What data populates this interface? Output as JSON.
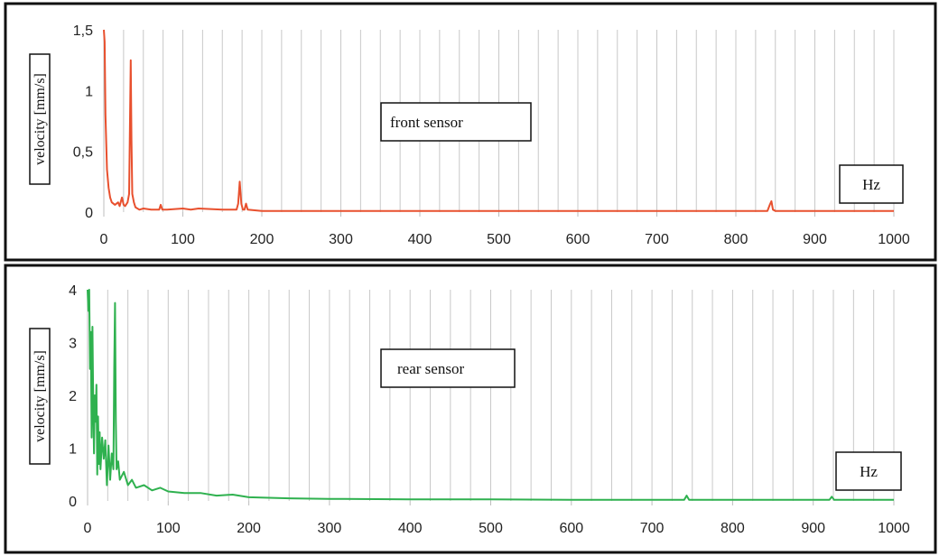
{
  "chart_data": [
    {
      "type": "line",
      "panel": "top",
      "annotation": "front sensor",
      "unit_box": "Hz",
      "ylabel": "velocity [mm/s]",
      "xlabel": "",
      "xlim": [
        0,
        1000
      ],
      "ylim": [
        0,
        1.5
      ],
      "x_ticks": [
        "0",
        "100",
        "200",
        "300",
        "400",
        "500",
        "600",
        "700",
        "800",
        "900",
        "1000"
      ],
      "y_ticks": [
        "0",
        "0,5",
        "1",
        "1,5"
      ],
      "grid": "vertical every 25 Hz",
      "color": "#e8502e",
      "series": [
        {
          "x": [
            0,
            1,
            2,
            4,
            6,
            8,
            10,
            14,
            18,
            20,
            23,
            25,
            27,
            30,
            32,
            33,
            34,
            35,
            36,
            38,
            40,
            45,
            50,
            60,
            70,
            72,
            74,
            80,
            100,
            110,
            120,
            150,
            168,
            170,
            172,
            174,
            176,
            178,
            180,
            182,
            200,
            300,
            400,
            500,
            600,
            700,
            800,
            840,
            843,
            845,
            847,
            850,
            900,
            950,
            1000
          ],
          "y": [
            1.5,
            1.4,
            0.8,
            0.35,
            0.2,
            0.12,
            0.08,
            0.06,
            0.08,
            0.05,
            0.12,
            0.06,
            0.05,
            0.08,
            0.15,
            0.7,
            1.25,
            0.6,
            0.15,
            0.08,
            0.04,
            0.02,
            0.03,
            0.02,
            0.02,
            0.06,
            0.02,
            0.02,
            0.03,
            0.02,
            0.03,
            0.02,
            0.02,
            0.07,
            0.25,
            0.07,
            0.02,
            0.02,
            0.07,
            0.02,
            0.01,
            0.01,
            0.01,
            0.01,
            0.01,
            0.01,
            0.01,
            0.01,
            0.06,
            0.09,
            0.02,
            0.01,
            0.01,
            0.01,
            0.01
          ]
        }
      ]
    },
    {
      "type": "line",
      "panel": "bottom",
      "annotation": "rear sensor",
      "unit_box": "Hz",
      "ylabel": "velocity [mm/s]",
      "xlabel": "",
      "xlim": [
        0,
        1000
      ],
      "ylim": [
        0,
        4
      ],
      "x_ticks": [
        "0",
        "100",
        "200",
        "300",
        "400",
        "500",
        "600",
        "700",
        "800",
        "900",
        "1000"
      ],
      "y_ticks": [
        "0",
        "1",
        "2",
        "3",
        "4"
      ],
      "grid": "vertical every 25 Hz",
      "color": "#2fb14f",
      "series": [
        {
          "x": [
            0,
            1,
            2,
            3,
            4,
            5,
            6,
            7,
            8,
            9,
            10,
            11,
            12,
            13,
            14,
            15,
            16,
            18,
            20,
            22,
            24,
            26,
            28,
            30,
            32,
            33,
            34,
            35,
            36,
            38,
            40,
            45,
            50,
            55,
            60,
            70,
            80,
            90,
            100,
            120,
            140,
            160,
            180,
            200,
            250,
            300,
            400,
            500,
            600,
            700,
            740,
            743,
            746,
            800,
            900,
            920,
            923,
            926,
            950,
            1000
          ],
          "y": [
            4.0,
            3.6,
            4.0,
            2.5,
            3.2,
            1.2,
            3.3,
            1.8,
            0.9,
            2.0,
            1.5,
            2.2,
            0.5,
            1.6,
            0.7,
            1.3,
            0.6,
            1.2,
            0.8,
            1.15,
            0.3,
            1.05,
            0.4,
            0.9,
            0.6,
            2.5,
            3.75,
            1.5,
            0.6,
            0.75,
            0.4,
            0.55,
            0.3,
            0.4,
            0.25,
            0.3,
            0.2,
            0.25,
            0.18,
            0.15,
            0.15,
            0.1,
            0.12,
            0.07,
            0.05,
            0.04,
            0.03,
            0.03,
            0.02,
            0.02,
            0.02,
            0.1,
            0.02,
            0.02,
            0.02,
            0.02,
            0.08,
            0.02,
            0.02,
            0.02
          ]
        }
      ]
    }
  ]
}
